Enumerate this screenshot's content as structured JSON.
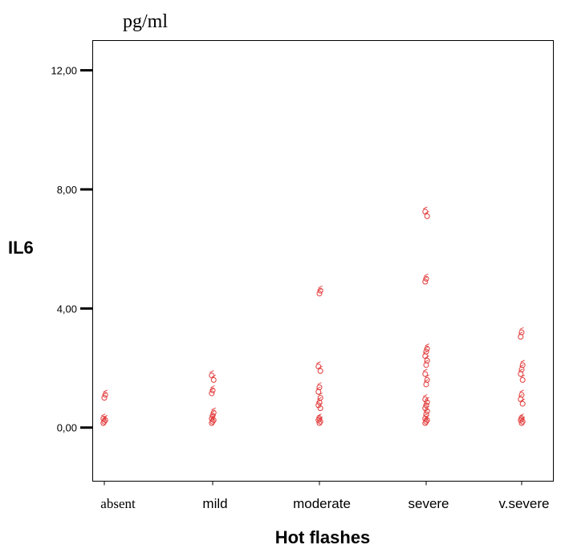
{
  "chart_data": {
    "type": "scatter",
    "unit_label": "pg/ml",
    "ylabel": "IL6",
    "xlabel": "Hot flashes",
    "categories": [
      "absent",
      "mild",
      "moderate",
      "severe",
      "v.severe"
    ],
    "ylim": [
      -1.8,
      13.0
    ],
    "yticks": [
      0.0,
      4.0,
      8.0,
      12.0
    ],
    "ytick_labels": [
      "0,00",
      "4,00",
      "8,00",
      "12,00"
    ],
    "grid": false,
    "marker_color": "#e23a3a",
    "marker_symbol": "circle-open",
    "series": [
      {
        "values": [
          [
            "absent",
            0.15
          ],
          [
            "absent",
            0.2
          ],
          [
            "absent",
            0.25
          ],
          [
            "absent",
            0.3
          ],
          [
            "absent",
            1.0
          ],
          [
            "absent",
            1.1
          ],
          [
            "mild",
            0.15
          ],
          [
            "mild",
            0.2
          ],
          [
            "mild",
            0.25
          ],
          [
            "mild",
            0.3
          ],
          [
            "mild",
            0.4
          ],
          [
            "mild",
            0.5
          ],
          [
            "mild",
            1.15
          ],
          [
            "mild",
            1.25
          ],
          [
            "mild",
            1.6
          ],
          [
            "mild",
            1.75
          ],
          [
            "moderate",
            0.15
          ],
          [
            "moderate",
            0.2
          ],
          [
            "moderate",
            0.25
          ],
          [
            "moderate",
            0.3
          ],
          [
            "moderate",
            0.65
          ],
          [
            "moderate",
            0.75
          ],
          [
            "moderate",
            0.85
          ],
          [
            "moderate",
            1.0
          ],
          [
            "moderate",
            1.2
          ],
          [
            "moderate",
            1.35
          ],
          [
            "moderate",
            1.9
          ],
          [
            "moderate",
            2.05
          ],
          [
            "moderate",
            4.5
          ],
          [
            "moderate",
            4.6
          ],
          [
            "severe",
            0.15
          ],
          [
            "severe",
            0.2
          ],
          [
            "severe",
            0.25
          ],
          [
            "severe",
            0.3
          ],
          [
            "severe",
            0.45
          ],
          [
            "severe",
            0.55
          ],
          [
            "severe",
            0.65
          ],
          [
            "severe",
            0.75
          ],
          [
            "severe",
            0.85
          ],
          [
            "severe",
            0.95
          ],
          [
            "severe",
            1.45
          ],
          [
            "severe",
            1.6
          ],
          [
            "severe",
            1.8
          ],
          [
            "severe",
            2.1
          ],
          [
            "severe",
            2.25
          ],
          [
            "severe",
            2.4
          ],
          [
            "severe",
            2.55
          ],
          [
            "severe",
            2.65
          ],
          [
            "severe",
            4.9
          ],
          [
            "severe",
            5.0
          ],
          [
            "severe",
            7.1
          ],
          [
            "severe",
            7.25
          ],
          [
            "v.severe",
            0.15
          ],
          [
            "v.severe",
            0.2
          ],
          [
            "v.severe",
            0.25
          ],
          [
            "v.severe",
            0.3
          ],
          [
            "v.severe",
            0.8
          ],
          [
            "v.severe",
            0.95
          ],
          [
            "v.severe",
            1.1
          ],
          [
            "v.severe",
            1.6
          ],
          [
            "v.severe",
            1.8
          ],
          [
            "v.severe",
            1.95
          ],
          [
            "v.severe",
            2.1
          ],
          [
            "v.severe",
            3.05
          ],
          [
            "v.severe",
            3.2
          ]
        ]
      }
    ]
  }
}
